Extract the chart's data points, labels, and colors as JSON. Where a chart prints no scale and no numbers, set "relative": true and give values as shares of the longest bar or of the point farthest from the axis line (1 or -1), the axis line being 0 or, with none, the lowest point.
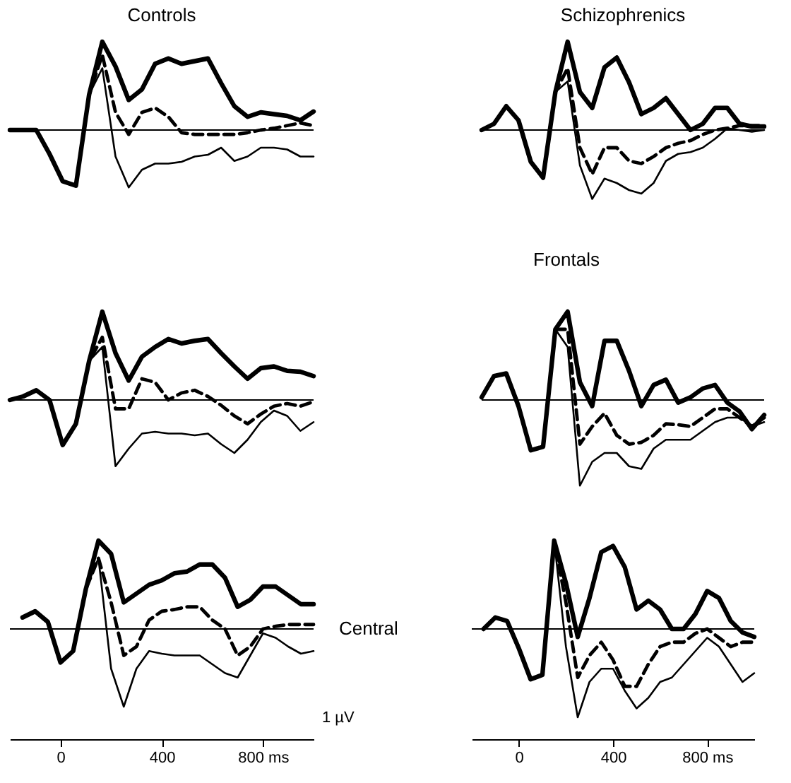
{
  "chart_data": [
    {
      "type": "line",
      "title": "Controls",
      "relative": true,
      "categories": [
        null,
        null,
        null,
        null,
        null,
        null,
        null,
        null,
        null,
        null,
        null,
        null,
        null,
        null,
        null,
        null,
        null,
        null,
        null,
        null,
        null,
        null,
        null,
        null
      ],
      "tick_labels": false,
      "series": [
        {
          "color": "#000000",
          "line_style": "solid",
          "values": [
            0,
            0,
            0,
            -0.27,
            -0.58,
            -0.63,
            0.4,
            1.0,
            0.72,
            0.34,
            0.46,
            0.75,
            0.81,
            0.75,
            0.78,
            0.81,
            0.53,
            0.27,
            0.15,
            0.2,
            0.18,
            0.16,
            0.11,
            0.21
          ]
        },
        {
          "color": "#000000",
          "line_style": "dashed",
          "values": [
            0,
            0,
            0,
            -0.27,
            -0.58,
            -0.63,
            0.4,
            0.85,
            0.2,
            -0.05,
            0.2,
            0.25,
            0.15,
            -0.03,
            -0.05,
            -0.05,
            -0.05,
            -0.05,
            -0.03,
            0.0,
            0.02,
            0.05,
            0.08,
            0.05
          ]
        },
        {
          "color": "#000000",
          "line_style": "solid",
          "values": [
            0,
            0,
            0,
            -0.27,
            -0.58,
            -0.63,
            0.4,
            0.7,
            -0.3,
            -0.65,
            -0.45,
            -0.38,
            -0.38,
            -0.36,
            -0.3,
            -0.28,
            -0.2,
            -0.35,
            -0.3,
            -0.2,
            -0.2,
            -0.22,
            -0.3,
            -0.3
          ]
        }
      ]
    },
    {
      "type": "line",
      "title": "Schizophrenics",
      "annotations": [
        "Frontals"
      ],
      "relative": true,
      "categories": [
        null,
        null,
        null,
        null,
        null,
        null,
        null,
        null,
        null,
        null,
        null,
        null,
        null,
        null,
        null,
        null,
        null,
        null,
        null,
        null,
        null,
        null,
        null,
        null
      ],
      "tick_labels": false,
      "series": [
        {
          "color": "#000000",
          "line_style": "solid",
          "values": [
            0,
            0.07,
            0.27,
            0.11,
            -0.36,
            -0.54,
            0.43,
            1.0,
            0.43,
            0.25,
            0.71,
            0.82,
            0.54,
            0.18,
            0.25,
            0.36,
            0.18,
            0,
            0.07,
            0.25,
            0.25,
            0.07,
            0.04,
            0.04
          ]
        },
        {
          "color": "#000000",
          "line_style": "dashed",
          "values": [
            0,
            0.07,
            0.27,
            0.11,
            -0.36,
            -0.54,
            0.43,
            0.7,
            -0.2,
            -0.5,
            -0.2,
            -0.2,
            -0.35,
            -0.38,
            -0.3,
            -0.2,
            -0.15,
            -0.12,
            -0.05,
            0.0,
            0.02,
            0.05,
            0.05,
            0.05
          ]
        },
        {
          "color": "#000000",
          "line_style": "solid",
          "values": [
            0,
            0.07,
            0.27,
            0.11,
            -0.36,
            -0.54,
            0.43,
            0.55,
            -0.4,
            -0.78,
            -0.55,
            -0.6,
            -0.68,
            -0.72,
            -0.6,
            -0.35,
            -0.27,
            -0.25,
            -0.2,
            -0.1,
            0.02,
            0.0,
            -0.02,
            0.0
          ]
        }
      ]
    },
    {
      "type": "line",
      "relative": true,
      "categories": [
        null,
        null,
        null,
        null,
        null,
        null,
        null,
        null,
        null,
        null,
        null,
        null,
        null,
        null,
        null,
        null,
        null,
        null,
        null,
        null,
        null,
        null,
        null,
        null
      ],
      "tick_labels": false,
      "series": [
        {
          "color": "#000000",
          "line_style": "solid",
          "values": [
            0,
            0.04,
            0.11,
            0,
            -0.51,
            -0.27,
            0.44,
            1.0,
            0.53,
            0.22,
            0.49,
            0.6,
            0.69,
            0.64,
            0.67,
            0.69,
            0.53,
            0.38,
            0.24,
            0.36,
            0.38,
            0.33,
            0.32,
            0.27
          ]
        },
        {
          "color": "#000000",
          "line_style": "dashed",
          "values": [
            0,
            0.04,
            0.11,
            0,
            -0.51,
            -0.27,
            0.44,
            0.71,
            -0.1,
            -0.1,
            0.24,
            0.2,
            0.0,
            0.08,
            0.11,
            0.04,
            -0.06,
            -0.18,
            -0.27,
            -0.16,
            -0.07,
            -0.04,
            -0.07,
            -0.02
          ]
        },
        {
          "color": "#000000",
          "line_style": "solid",
          "values": [
            0,
            0.04,
            0.11,
            0,
            -0.51,
            -0.27,
            0.44,
            0.6,
            -0.75,
            -0.55,
            -0.38,
            -0.36,
            -0.38,
            -0.38,
            -0.4,
            -0.38,
            -0.5,
            -0.6,
            -0.45,
            -0.25,
            -0.12,
            -0.18,
            -0.35,
            -0.25
          ]
        }
      ]
    },
    {
      "type": "line",
      "relative": true,
      "categories": [
        null,
        null,
        null,
        null,
        null,
        null,
        null,
        null,
        null,
        null,
        null,
        null,
        null,
        null,
        null,
        null,
        null,
        null,
        null,
        null,
        null,
        null,
        null,
        null
      ],
      "tick_labels": false,
      "series": [
        {
          "color": "#000000",
          "line_style": "solid",
          "values": [
            0.03,
            0.27,
            0.3,
            -0.07,
            -0.57,
            -0.53,
            0.8,
            1.0,
            0.2,
            -0.07,
            0.67,
            0.67,
            0.33,
            -0.07,
            0.17,
            0.23,
            -0.03,
            0.03,
            0.13,
            0.17,
            -0.03,
            -0.13,
            -0.33,
            -0.17
          ]
        },
        {
          "color": "#000000",
          "line_style": "dashed",
          "values": [
            0.03,
            0.27,
            0.3,
            -0.07,
            -0.57,
            -0.53,
            0.8,
            0.8,
            -0.5,
            -0.3,
            -0.15,
            -0.4,
            -0.5,
            -0.48,
            -0.4,
            -0.27,
            -0.28,
            -0.3,
            -0.2,
            -0.1,
            -0.1,
            -0.2,
            -0.3,
            -0.2
          ]
        },
        {
          "color": "#000000",
          "line_style": "solid",
          "values": [
            0.03,
            0.27,
            0.3,
            -0.07,
            -0.57,
            -0.53,
            0.8,
            0.6,
            -0.97,
            -0.7,
            -0.6,
            -0.6,
            -0.75,
            -0.78,
            -0.55,
            -0.45,
            -0.45,
            -0.45,
            -0.35,
            -0.25,
            -0.2,
            -0.2,
            -0.3,
            -0.25
          ]
        }
      ]
    },
    {
      "type": "line",
      "relative": true,
      "annotations": [
        "Central",
        "1 µV"
      ],
      "x": [
        -150,
        -100,
        -50,
        0,
        50,
        100,
        150,
        200,
        250,
        300,
        350,
        400,
        450,
        500,
        550,
        600,
        650,
        700,
        750,
        800,
        850,
        900,
        950,
        1000
      ],
      "xlim": [
        -200,
        1000
      ],
      "xticks": [
        0,
        400,
        {
          "value": 800,
          "label": "800 ms"
        }
      ],
      "tick_labels": "x",
      "series": [
        {
          "color": "#000000",
          "line_style": "solid",
          "values": [
            0.13,
            0.2,
            0.08,
            -0.38,
            -0.25,
            0.45,
            1.0,
            0.85,
            0.3,
            0.4,
            0.5,
            0.55,
            0.63,
            0.65,
            0.73,
            0.73,
            0.58,
            0.25,
            0.33,
            0.48,
            0.48,
            0.38,
            0.28,
            0.28
          ]
        },
        {
          "color": "#000000",
          "line_style": "dashed",
          "values": [
            0.13,
            0.2,
            0.08,
            -0.38,
            -0.25,
            0.45,
            0.8,
            0.3,
            -0.3,
            -0.2,
            0.1,
            0.2,
            0.22,
            0.25,
            0.25,
            0.1,
            0.0,
            -0.3,
            -0.2,
            0.0,
            0.03,
            0.05,
            0.05,
            0.05
          ]
        },
        {
          "color": "#000000",
          "line_style": "solid",
          "values": [
            0.13,
            0.2,
            0.08,
            -0.38,
            -0.25,
            0.45,
            0.8,
            -0.45,
            -0.88,
            -0.45,
            -0.25,
            -0.28,
            -0.3,
            -0.3,
            -0.3,
            -0.4,
            -0.5,
            -0.55,
            -0.3,
            -0.05,
            -0.1,
            -0.2,
            -0.28,
            -0.25
          ]
        }
      ]
    },
    {
      "type": "line",
      "relative": true,
      "x": [
        -150,
        -100,
        -50,
        0,
        50,
        100,
        150,
        200,
        250,
        300,
        350,
        400,
        450,
        500,
        550,
        600,
        650,
        700,
        750,
        800,
        850,
        900,
        950,
        1000
      ],
      "xlim": [
        -200,
        1000
      ],
      "xticks": [
        0,
        400,
        {
          "value": 800,
          "label": "800 ms"
        }
      ],
      "tick_labels": "x",
      "series": [
        {
          "color": "#000000",
          "line_style": "solid",
          "values": [
            0,
            0.13,
            0.09,
            -0.22,
            -0.57,
            -0.52,
            1.0,
            0.52,
            -0.09,
            0.35,
            0.87,
            0.94,
            0.7,
            0.22,
            0.32,
            0.22,
            0,
            0,
            0.17,
            0.43,
            0.35,
            0.09,
            -0.04,
            -0.09
          ]
        },
        {
          "color": "#000000",
          "line_style": "dashed",
          "values": [
            0,
            0.13,
            0.09,
            -0.22,
            -0.57,
            -0.52,
            1.0,
            0.3,
            -0.55,
            -0.3,
            -0.15,
            -0.35,
            -0.65,
            -0.65,
            -0.4,
            -0.2,
            -0.15,
            -0.15,
            -0.05,
            0.0,
            -0.1,
            -0.2,
            -0.15,
            -0.15
          ]
        },
        {
          "color": "#000000",
          "line_style": "solid",
          "values": [
            0,
            0.13,
            0.09,
            -0.22,
            -0.57,
            -0.52,
            1.0,
            -0.2,
            -1.0,
            -0.6,
            -0.45,
            -0.45,
            -0.7,
            -0.9,
            -0.78,
            -0.6,
            -0.55,
            -0.4,
            -0.25,
            -0.1,
            -0.2,
            -0.4,
            -0.6,
            -0.5
          ]
        }
      ]
    }
  ]
}
